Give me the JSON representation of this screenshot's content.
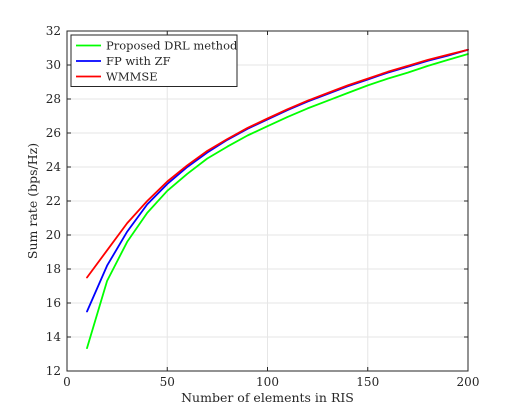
{
  "chart_data": {
    "type": "line",
    "title": "",
    "xlabel": "Number of elements in RIS",
    "ylabel": "Sum rate (bps/Hz)",
    "xlim": [
      0,
      200
    ],
    "ylim": [
      12,
      32
    ],
    "xticks": [
      0,
      50,
      100,
      150,
      200
    ],
    "yticks": [
      12,
      14,
      16,
      18,
      20,
      22,
      24,
      26,
      28,
      30,
      32
    ],
    "grid": true,
    "legend_position": "top-left",
    "x": [
      10,
      20,
      30,
      40,
      50,
      60,
      70,
      80,
      90,
      100,
      110,
      120,
      130,
      140,
      150,
      160,
      170,
      180,
      190,
      200
    ],
    "series": [
      {
        "name": "Proposed DRL method",
        "color": "#00ff00",
        "values": [
          13.35,
          17.3,
          19.6,
          21.3,
          22.6,
          23.6,
          24.5,
          25.2,
          25.85,
          26.4,
          26.95,
          27.45,
          27.9,
          28.35,
          28.8,
          29.2,
          29.55,
          29.95,
          30.3,
          30.65
        ]
      },
      {
        "name": "FP with ZF",
        "color": "#0000ff",
        "values": [
          15.5,
          18.2,
          20.2,
          21.8,
          23.0,
          24.0,
          24.85,
          25.6,
          26.25,
          26.8,
          27.35,
          27.85,
          28.3,
          28.75,
          29.15,
          29.55,
          29.9,
          30.25,
          30.55,
          30.9
        ]
      },
      {
        "name": "WMMSE",
        "color": "#ff0000",
        "values": [
          17.5,
          19.1,
          20.7,
          22.0,
          23.15,
          24.1,
          24.95,
          25.65,
          26.3,
          26.85,
          27.4,
          27.9,
          28.35,
          28.8,
          29.2,
          29.6,
          29.95,
          30.3,
          30.6,
          30.9
        ]
      }
    ]
  }
}
